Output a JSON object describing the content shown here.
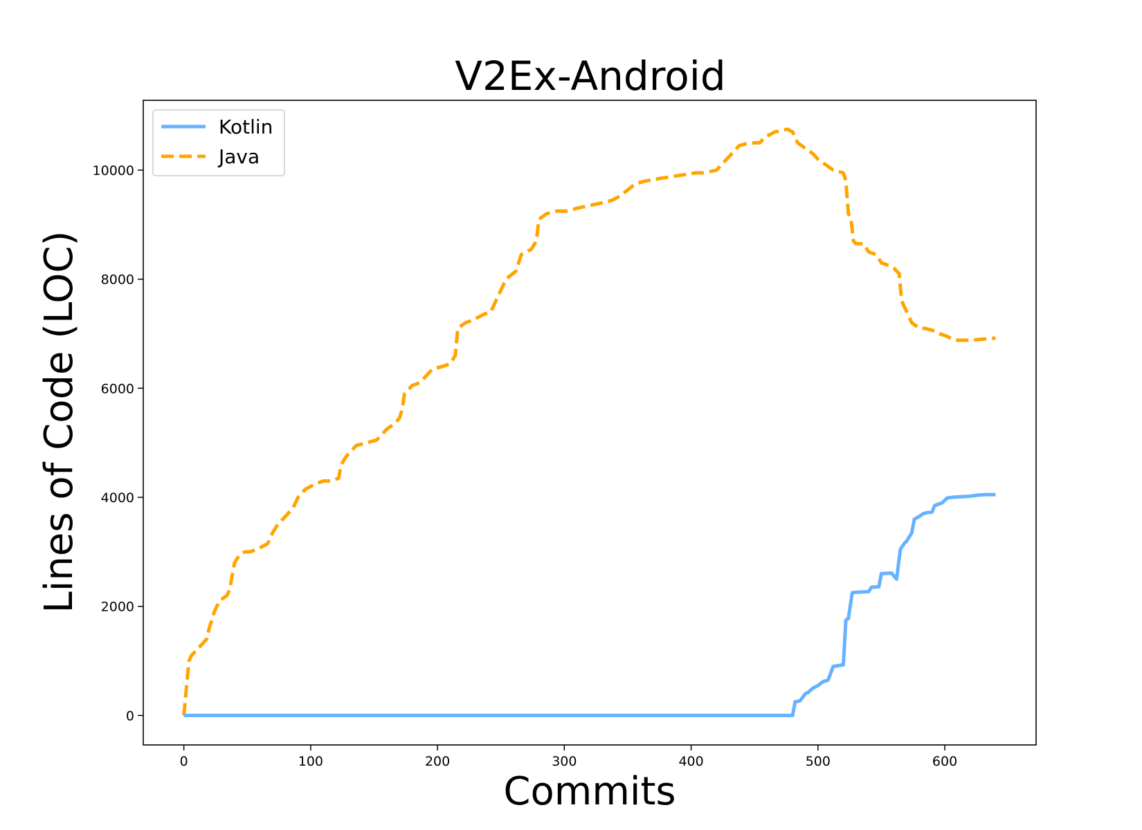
{
  "chart_data": {
    "type": "line",
    "title": "V2Ex-Android",
    "xlabel": "Commits",
    "ylabel": "Lines of Code (LOC)",
    "xlim": [
      -32,
      672
    ],
    "ylim": [
      -540,
      11280
    ],
    "xticks": [
      0,
      100,
      200,
      300,
      400,
      500,
      600
    ],
    "xtick_labels": [
      "0",
      "100",
      "200",
      "300",
      "400",
      "500",
      "600"
    ],
    "yticks": [
      0,
      2000,
      4000,
      6000,
      8000,
      10000
    ],
    "ytick_labels": [
      "0",
      "2000",
      "4000",
      "6000",
      "8000",
      "10000"
    ],
    "grid": false,
    "legend_position": "top-left",
    "series": [
      {
        "name": "Kotlin",
        "color": "#66b2ff",
        "style": "solid",
        "x": [
          0,
          100,
          200,
          300,
          400,
          480,
          482,
          484,
          486,
          490,
          492,
          496,
          500,
          504,
          508,
          512,
          520,
          522,
          524,
          527,
          530,
          540,
          542,
          548,
          550,
          558,
          562,
          565,
          568,
          570,
          574,
          576,
          580,
          583,
          586,
          590,
          592,
          598,
          602,
          606,
          612,
          620,
          626,
          632,
          640
        ],
        "y": [
          0,
          0,
          0,
          0,
          0,
          0,
          250,
          260,
          270,
          400,
          420,
          500,
          550,
          620,
          650,
          900,
          930,
          1750,
          1780,
          2250,
          2260,
          2270,
          2350,
          2360,
          2600,
          2610,
          2500,
          3050,
          3150,
          3200,
          3350,
          3600,
          3650,
          3700,
          3720,
          3730,
          3850,
          3900,
          3990,
          4000,
          4010,
          4020,
          4040,
          4050,
          4050
        ]
      },
      {
        "name": "Java",
        "color": "#ffa500",
        "style": "dashed",
        "x": [
          0,
          2,
          4,
          6,
          10,
          14,
          18,
          20,
          24,
          28,
          34,
          36,
          40,
          44,
          48,
          52,
          58,
          62,
          66,
          70,
          74,
          78,
          82,
          86,
          90,
          96,
          104,
          110,
          116,
          122,
          124,
          128,
          132,
          136,
          144,
          152,
          156,
          160,
          166,
          170,
          172,
          174,
          180,
          186,
          190,
          196,
          204,
          210,
          214,
          216,
          222,
          228,
          236,
          242,
          252,
          254,
          262,
          266,
          270,
          274,
          278,
          280,
          286,
          294,
          302,
          310,
          320,
          330,
          338,
          342,
          348,
          356,
          364,
          376,
          390,
          404,
          410,
          420,
          424,
          428,
          434,
          438,
          446,
          454,
          458,
          466,
          476,
          480,
          484,
          490,
          496,
          500,
          506,
          512,
          520,
          522,
          524,
          526,
          528,
          530,
          536,
          540,
          546,
          550,
          556,
          560,
          564,
          566,
          570,
          574,
          580,
          584,
          592,
          596,
          602,
          606,
          610,
          620,
          630,
          640
        ],
        "y": [
          0,
          500,
          1000,
          1100,
          1200,
          1300,
          1400,
          1600,
          1900,
          2100,
          2200,
          2300,
          2800,
          2950,
          3000,
          3000,
          3050,
          3100,
          3150,
          3350,
          3500,
          3600,
          3700,
          3800,
          4000,
          4150,
          4250,
          4300,
          4300,
          4350,
          4600,
          4750,
          4850,
          4950,
          5000,
          5050,
          5150,
          5250,
          5350,
          5450,
          5600,
          5900,
          6050,
          6100,
          6200,
          6350,
          6400,
          6450,
          6600,
          7100,
          7200,
          7250,
          7350,
          7400,
          7900,
          8000,
          8150,
          8450,
          8500,
          8550,
          8700,
          9100,
          9200,
          9250,
          9250,
          9300,
          9350,
          9400,
          9450,
          9500,
          9600,
          9750,
          9800,
          9850,
          9900,
          9950,
          9950,
          10000,
          10100,
          10200,
          10350,
          10450,
          10500,
          10500,
          10600,
          10700,
          10750,
          10700,
          10500,
          10400,
          10300,
          10200,
          10100,
          10000,
          9950,
          9800,
          9200,
          9100,
          8700,
          8650,
          8650,
          8500,
          8450,
          8300,
          8250,
          8200,
          8100,
          7600,
          7400,
          7200,
          7100,
          7100,
          7050,
          7000,
          6950,
          6900,
          6880,
          6880,
          6900,
          6920
        ]
      }
    ]
  }
}
